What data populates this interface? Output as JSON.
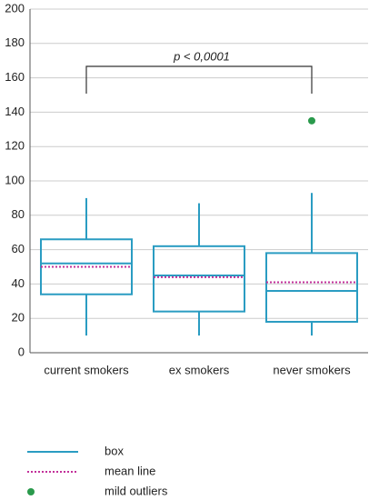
{
  "chart_data": {
    "type": "box",
    "categories": [
      "current smokers",
      "ex smokers",
      "never smokers"
    ],
    "whislo": [
      10,
      10,
      10
    ],
    "q1": [
      34,
      24,
      18
    ],
    "median": [
      52,
      45,
      36
    ],
    "q3": [
      66,
      62,
      58
    ],
    "whishi": [
      90,
      87,
      93
    ],
    "mean": [
      50,
      44,
      41
    ],
    "outliers": [
      [],
      [],
      [
        135
      ]
    ],
    "ylim": [
      0,
      200
    ],
    "yticks": [
      0,
      20,
      40,
      60,
      80,
      100,
      120,
      140,
      160,
      180,
      200
    ],
    "grid": true,
    "annotation": "p < 0,0001",
    "box_color": "#2a9cc2",
    "mean_color": "#c2309a",
    "outlier_color": "#2a9a4c",
    "legend": [
      "box",
      "mean line",
      "mild outliers"
    ]
  }
}
